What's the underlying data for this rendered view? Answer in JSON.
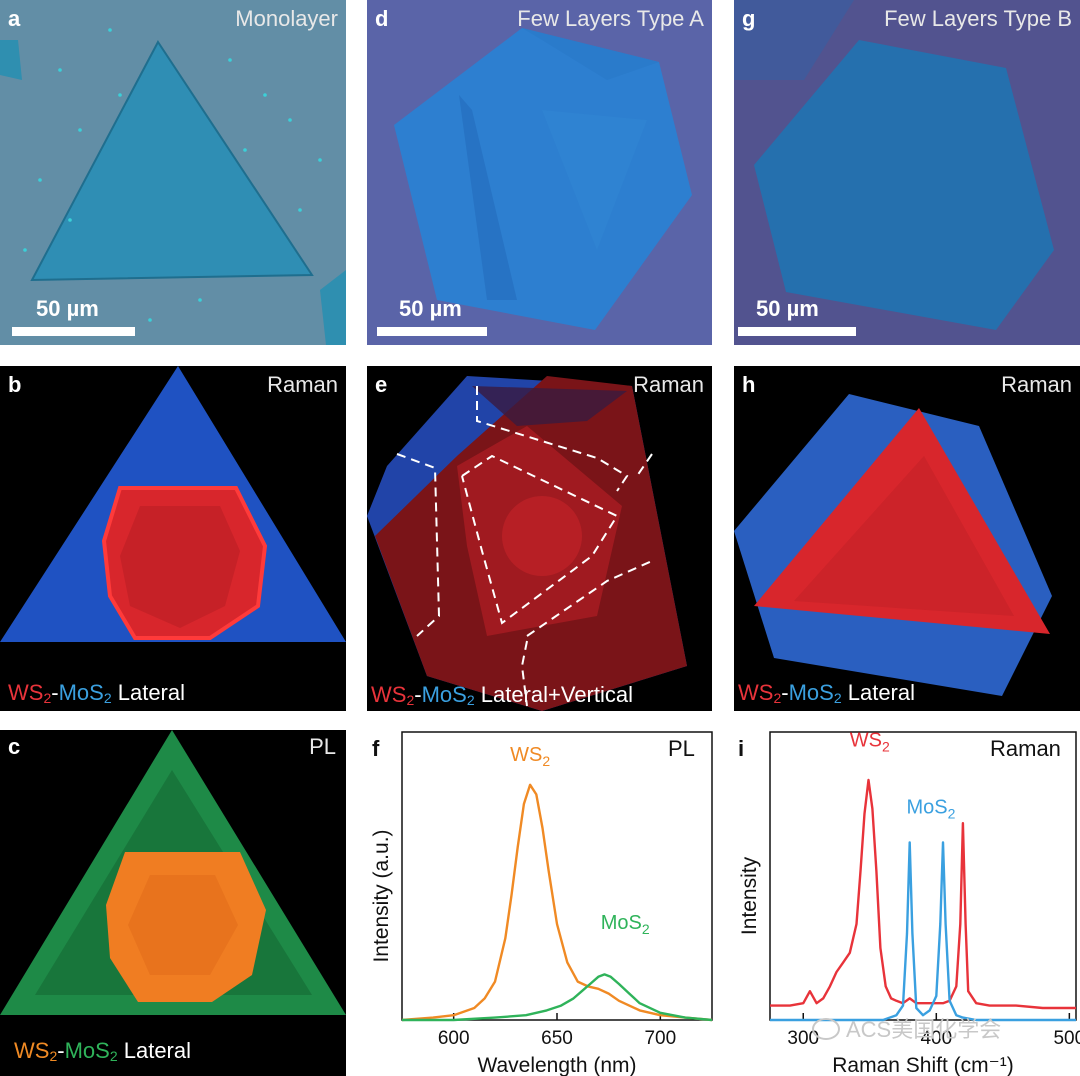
{
  "panels": {
    "a": {
      "letter": "a",
      "title": "Monolayer",
      "scale": "50 µm"
    },
    "d": {
      "letter": "d",
      "title": "Few Layers Type A",
      "scale": "50 µm"
    },
    "g": {
      "letter": "g",
      "title": "Few Layers Type B",
      "scale": "50 µm"
    },
    "b": {
      "letter": "b",
      "title": "Raman",
      "legend": {
        "m1": "WS",
        "m1sub": "2",
        "dash": "-",
        "m2": "MoS",
        "m2sub": "2",
        "rest": " Lateral"
      }
    },
    "e": {
      "letter": "e",
      "title": "Raman",
      "legend": {
        "m1": "WS",
        "m1sub": "2",
        "dash": "-",
        "m2": "MoS",
        "m2sub": "2",
        "rest": " Lateral+Vertical"
      }
    },
    "h": {
      "letter": "h",
      "title": "Raman",
      "legend": {
        "m1": "WS",
        "m1sub": "2",
        "dash": "-",
        "m2": "MoS",
        "m2sub": "2",
        "rest": " Lateral"
      }
    },
    "c": {
      "letter": "c",
      "title": "PL",
      "legend": {
        "m1": "WS",
        "m1sub": "2",
        "dash": "-",
        "m2": "MoS",
        "m2sub": "2",
        "rest": " Lateral"
      }
    },
    "f": {
      "letter": "f",
      "title": "PL"
    },
    "i": {
      "letter": "i",
      "title": "Raman"
    }
  },
  "watermark": "ACS美国化学会",
  "colors": {
    "ws2_raman": "#e8333a",
    "mos2_raman": "#3aa0e0",
    "ws2_pl": "#f08a24",
    "mos2_pl": "#2fb35a"
  },
  "chart_data": [
    {
      "id": "f",
      "type": "line",
      "title": "PL",
      "xlabel": "Wavelength (nm)",
      "ylabel": "Intensity (a.u.)",
      "xlim": [
        575,
        725
      ],
      "ylim": [
        0,
        1.2
      ],
      "xticks": [
        600,
        650,
        700
      ],
      "series": [
        {
          "name": "WS₂",
          "color": "#f08a24",
          "x": [
            575,
            590,
            600,
            610,
            615,
            620,
            625,
            628,
            631,
            634,
            637,
            640,
            643,
            646,
            650,
            655,
            660,
            665,
            670,
            675,
            680,
            690,
            700,
            712,
            725
          ],
          "y": [
            0.0,
            0.01,
            0.02,
            0.05,
            0.09,
            0.16,
            0.34,
            0.52,
            0.72,
            0.9,
            0.98,
            0.94,
            0.8,
            0.62,
            0.4,
            0.24,
            0.16,
            0.14,
            0.13,
            0.11,
            0.08,
            0.04,
            0.02,
            0.01,
            0.0
          ]
        },
        {
          "name": "MoS₂",
          "color": "#2fb35a",
          "x": [
            575,
            600,
            620,
            635,
            645,
            652,
            658,
            662,
            666,
            670,
            673,
            676,
            680,
            685,
            690,
            700,
            712,
            725
          ],
          "y": [
            0.0,
            0.0,
            0.01,
            0.02,
            0.04,
            0.06,
            0.09,
            0.12,
            0.15,
            0.18,
            0.19,
            0.18,
            0.15,
            0.11,
            0.07,
            0.03,
            0.01,
            0.0
          ]
        }
      ],
      "annotations": [
        {
          "text": "WS",
          "sub": "2",
          "x": 637,
          "y": 1.08,
          "color": "#f08a24"
        },
        {
          "text": "MoS",
          "sub": "2",
          "x": 683,
          "y": 0.38,
          "color": "#2fb35a"
        }
      ]
    },
    {
      "id": "i",
      "type": "line",
      "title": "Raman",
      "xlabel": "Raman Shift (cm⁻¹)",
      "ylabel": "Intensity",
      "xlim": [
        275,
        505
      ],
      "ylim": [
        0,
        1.2
      ],
      "xticks": [
        300,
        400,
        500
      ],
      "xtick_labels": [
        "300",
        "400",
        "500"
      ],
      "series": [
        {
          "name": "WS₂",
          "color": "#e8333a",
          "x": [
            275,
            290,
            300,
            305,
            310,
            315,
            320,
            325,
            330,
            335,
            340,
            343,
            346,
            349,
            352,
            355,
            358,
            362,
            366,
            370,
            375,
            380,
            385,
            390,
            395,
            398,
            400,
            405,
            410,
            415,
            418,
            420,
            422,
            424,
            430,
            440,
            460,
            480,
            505
          ],
          "y": [
            0.06,
            0.06,
            0.07,
            0.12,
            0.07,
            0.09,
            0.14,
            0.2,
            0.24,
            0.28,
            0.4,
            0.62,
            0.86,
            1.0,
            0.88,
            0.62,
            0.3,
            0.14,
            0.09,
            0.08,
            0.07,
            0.09,
            0.07,
            0.07,
            0.07,
            0.07,
            0.07,
            0.07,
            0.08,
            0.14,
            0.4,
            0.82,
            0.4,
            0.12,
            0.07,
            0.06,
            0.06,
            0.05,
            0.05
          ]
        },
        {
          "name": "MoS₂",
          "color": "#3aa0e0",
          "x": [
            275,
            300,
            330,
            360,
            370,
            375,
            378,
            380,
            382,
            385,
            390,
            395,
            400,
            403,
            405,
            407,
            410,
            415,
            420,
            430,
            460,
            505
          ],
          "y": [
            0.0,
            0.0,
            0.0,
            0.0,
            0.02,
            0.06,
            0.36,
            0.74,
            0.36,
            0.05,
            0.02,
            0.04,
            0.1,
            0.4,
            0.74,
            0.4,
            0.08,
            0.02,
            0.01,
            0.0,
            0.0,
            0.0
          ]
        }
      ],
      "annotations": [
        {
          "text": "WS",
          "sub": "2",
          "x": 350,
          "y": 1.14,
          "color": "#e8333a"
        },
        {
          "text": "MoS",
          "sub": "2",
          "x": 396,
          "y": 0.86,
          "color": "#3aa0e0"
        }
      ]
    }
  ]
}
